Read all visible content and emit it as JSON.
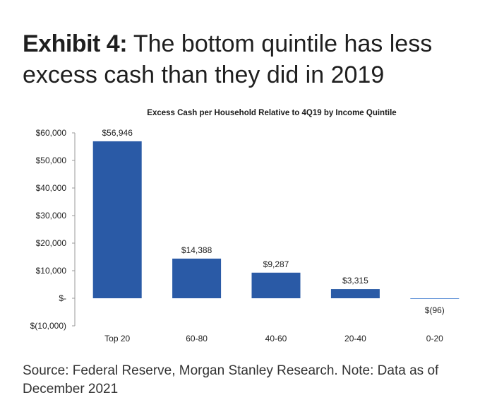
{
  "headline": {
    "label": "Exhibit 4:",
    "text": "The bottom quintile has less excess cash than they did in 2019"
  },
  "source_note": "Source: Federal Reserve, Morgan Stanley Research. Note: Data as of December 2021",
  "chart_data": {
    "type": "bar",
    "title": "Excess Cash per Household Relative to 4Q19 by Income Quintile",
    "xlabel": "",
    "ylabel": "",
    "categories": [
      "Top 20",
      "60-80",
      "40-60",
      "20-40",
      "0-20"
    ],
    "values": [
      56946,
      14388,
      9287,
      3315,
      -96
    ],
    "data_labels": [
      "$56,946",
      "$14,388",
      "$9,287",
      "$3,315",
      "$(96)"
    ],
    "ylim": [
      -10000,
      60000
    ],
    "yticks": [
      60000,
      50000,
      40000,
      30000,
      20000,
      10000,
      0,
      -10000
    ],
    "ytick_labels": [
      "$60,000",
      "$50,000",
      "$40,000",
      "$30,000",
      "$20,000",
      "$10,000",
      "$-",
      "$(10,000)"
    ],
    "grid": false,
    "legend": "none",
    "bar_color": "#2a5aa6"
  }
}
